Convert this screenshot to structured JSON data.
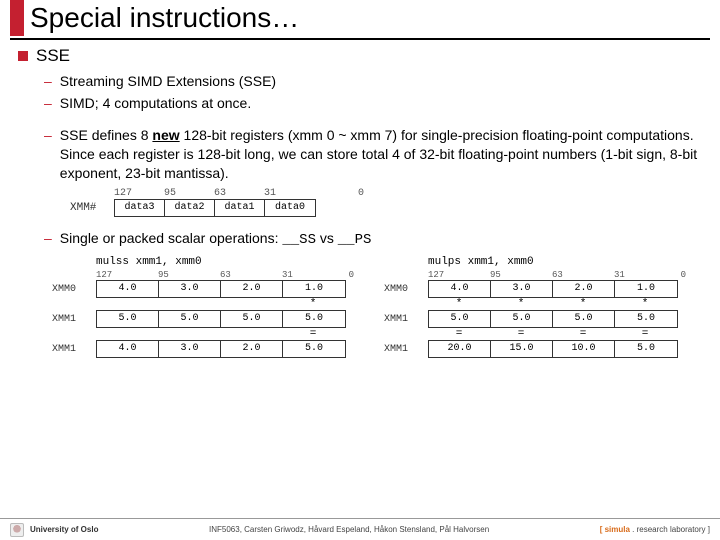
{
  "title": "Special instructions…",
  "section_heading": "SSE",
  "bullets": {
    "b1": "Streaming SIMD Extensions (SSE)",
    "b2": "SIMD; 4 computations at once.",
    "b3_pre": "SSE defines 8 ",
    "b3_u": "new",
    "b3_post": " 128-bit registers (xmm 0 ~ xmm 7) for single-precision floating-point computations. Since each register is 128-bit long, we can store total 4 of 32-bit floating-point numbers (1-bit sign, 8-bit exponent, 23-bit mantissa).",
    "b4_pre": "Single or packed scalar operations: ",
    "b4_m1": "__SS",
    "b4_mid": " vs ",
    "b4_m2": "__PS"
  },
  "reg": {
    "ticks": [
      "127",
      "95",
      "63",
      "31",
      "0"
    ],
    "label": "XMM#",
    "cells": [
      "data3",
      "data2",
      "data1",
      "data0"
    ]
  },
  "mulss": {
    "instr": "mulss xmm1, xmm0",
    "ticks": [
      "127",
      "95",
      "63",
      "31",
      "0"
    ],
    "rows": {
      "r0": {
        "lbl": "XMM0",
        "vals": [
          "4.0",
          "3.0",
          "2.0",
          "1.0"
        ]
      },
      "op1": [
        "",
        "",
        "",
        "*"
      ],
      "r1": {
        "lbl": "XMM1",
        "vals": [
          "5.0",
          "5.0",
          "5.0",
          "5.0"
        ]
      },
      "op2": [
        "",
        "",
        "",
        "="
      ],
      "r2": {
        "lbl": "XMM1",
        "vals": [
          "4.0",
          "3.0",
          "2.0",
          "5.0"
        ]
      }
    }
  },
  "mulps": {
    "instr": "mulps xmm1, xmm0",
    "ticks": [
      "127",
      "95",
      "63",
      "31",
      "0"
    ],
    "rows": {
      "r0": {
        "lbl": "XMM0",
        "vals": [
          "4.0",
          "3.0",
          "2.0",
          "1.0"
        ]
      },
      "op1": [
        "*",
        "*",
        "*",
        "*"
      ],
      "r1": {
        "lbl": "XMM1",
        "vals": [
          "5.0",
          "5.0",
          "5.0",
          "5.0"
        ]
      },
      "op2": [
        "=",
        "=",
        "=",
        "="
      ],
      "r2": {
        "lbl": "XMM1",
        "vals": [
          "20.0",
          "15.0",
          "10.0",
          "5.0"
        ]
      }
    }
  },
  "footer": {
    "uni": "University of Oslo",
    "course": "INF5063, Carsten Griwodz, Håvard Espeland, Håkon Stensland, Pål Halvorsen",
    "lab_b1": "[ ",
    "lab_bold": "simula",
    "lab_b2": " . research laboratory ]"
  }
}
